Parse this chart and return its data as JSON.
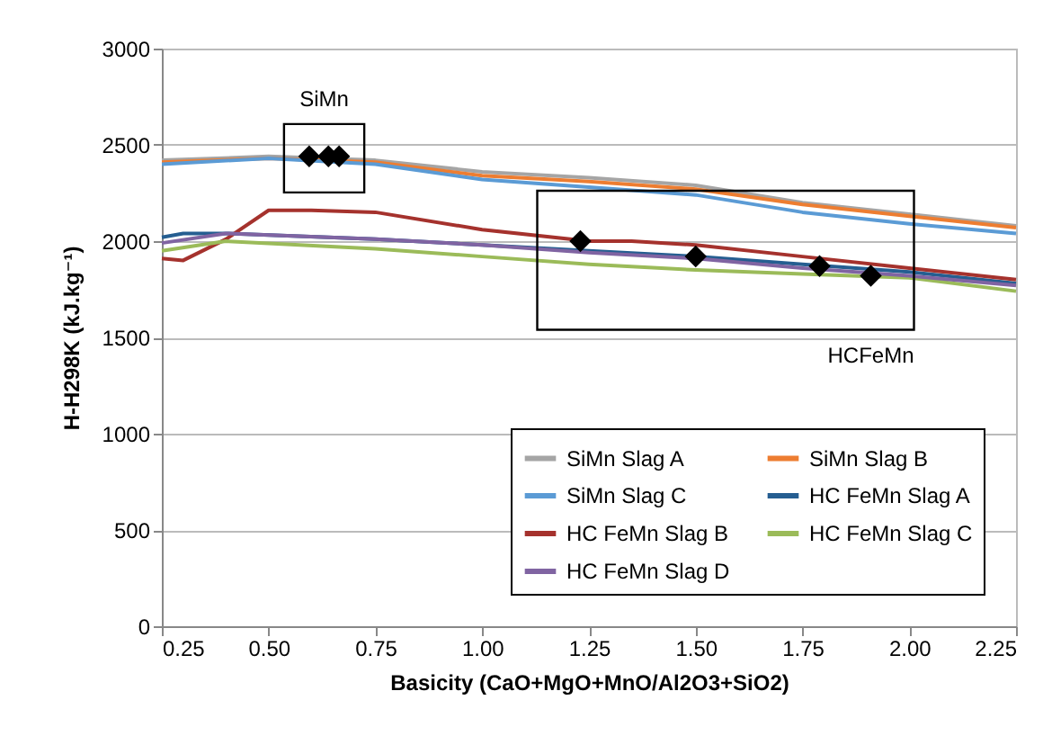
{
  "chart_data": {
    "type": "line",
    "xlabel": "Basicity (CaO+MgO+MnO/Al2O3+SiO2)",
    "ylabel": "H-H298K (kJ.kg⁻¹)",
    "xlim": [
      0.25,
      2.25
    ],
    "xticks": [
      0.25,
      {
        "value": 0.5,
        "label": "0.50"
      },
      0.75,
      {
        "value": 1,
        "label": "1.00"
      },
      1.25,
      {
        "value": 1.5,
        "label": "1.50"
      },
      1.75,
      {
        "value": 2,
        "label": "2.00"
      },
      2.25
    ],
    "ylim": [
      0,
      3000
    ],
    "yticks": [
      0,
      500,
      1000,
      1500,
      2000,
      2500,
      3000
    ],
    "grid": "y",
    "legend": "bottom right",
    "marker": "none",
    "line_style": "solid",
    "series": [
      {
        "name": "SiMn Slag A",
        "color": "#a5a5a5",
        "x": [
          0.25,
          0.5,
          0.75,
          1.0,
          1.25,
          1.5,
          1.75,
          2.0,
          2.25
        ],
        "values": [
          2420,
          2440,
          2420,
          2360,
          2330,
          2290,
          2200,
          2140,
          2080
        ]
      },
      {
        "name": "SiMn Slag B",
        "color": "#ed7d31",
        "x": [
          0.25,
          0.5,
          0.75,
          1.0,
          1.25,
          1.5,
          1.75,
          2.0,
          2.25
        ],
        "values": [
          2410,
          2430,
          2410,
          2340,
          2310,
          2270,
          2190,
          2130,
          2070
        ]
      },
      {
        "name": "SiMn Slag C",
        "color": "#5b9bd5",
        "x": [
          0.25,
          0.5,
          0.75,
          1.0,
          1.25,
          1.5,
          1.75,
          2.0,
          2.25
        ],
        "values": [
          2400,
          2430,
          2400,
          2320,
          2280,
          2240,
          2150,
          2090,
          2040
        ]
      },
      {
        "name": "HC FeMn Slag A",
        "color": "#255e91",
        "x": [
          0.25,
          0.3,
          0.4,
          0.75,
          1.0,
          1.25,
          1.5,
          1.75,
          2.0,
          2.25
        ],
        "values": [
          2020,
          2040,
          2040,
          2010,
          1980,
          1950,
          1920,
          1880,
          1840,
          1780
        ]
      },
      {
        "name": "HC FeMn Slag B",
        "color": "#a5322d",
        "x": [
          0.25,
          0.3,
          0.4,
          0.5,
          0.6,
          0.75,
          1.0,
          1.25,
          1.35,
          1.5,
          1.75,
          2.0,
          2.25
        ],
        "values": [
          1910,
          1900,
          2010,
          2160,
          2160,
          2150,
          2060,
          2000,
          2000,
          1980,
          1920,
          1860,
          1800
        ]
      },
      {
        "name": "HC FeMn Slag C",
        "color": "#9bbb59",
        "x": [
          0.25,
          0.4,
          0.75,
          1.0,
          1.25,
          1.5,
          1.75,
          2.0,
          2.25
        ],
        "values": [
          1950,
          2000,
          1960,
          1920,
          1880,
          1850,
          1830,
          1810,
          1740
        ]
      },
      {
        "name": "HC FeMn Slag D",
        "color": "#8064a2",
        "x": [
          0.25,
          0.4,
          0.75,
          1.0,
          1.25,
          1.5,
          1.75,
          2.0,
          2.25
        ],
        "values": [
          1990,
          2040,
          2010,
          1980,
          1940,
          1910,
          1860,
          1820,
          1770
        ]
      },
      {
        "type": "scatter",
        "marker": "diamond",
        "color": "#000000",
        "x": [
          0.595,
          0.64,
          0.665
        ],
        "values": [
          2440,
          2440,
          2440
        ]
      },
      {
        "type": "scatter",
        "marker": "diamond",
        "color": "#000000",
        "x": [
          1.23,
          1.5,
          1.79,
          1.91
        ],
        "values": [
          2000,
          1920,
          1870,
          1820
        ]
      }
    ],
    "annotations": [
      "SiMn",
      "HCFeMn"
    ]
  }
}
